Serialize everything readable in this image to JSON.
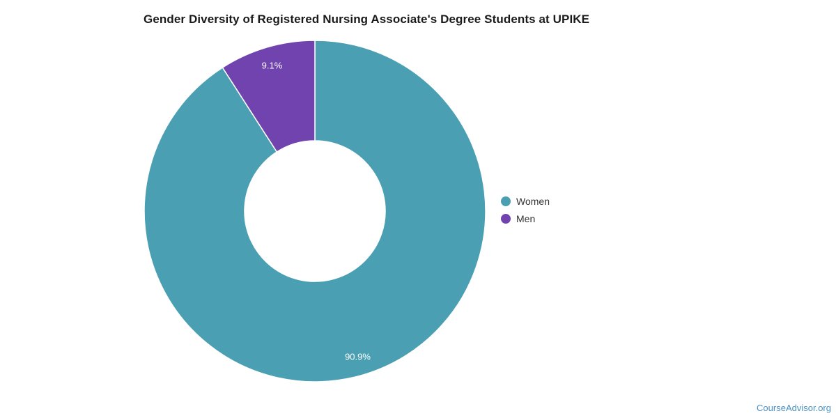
{
  "page": {
    "background": "#ffffff",
    "footer": {
      "text": "CourseAdvisor.org",
      "color": "#4a90c2"
    }
  },
  "chart_data": {
    "type": "pie",
    "donut": true,
    "title": "Gender Diversity of Registered Nursing Associate's Degree Students at UPIKE",
    "title_color": "#1a1a1a",
    "start_angle_deg": 0,
    "direction": "clockwise",
    "series": [
      {
        "name": "Women",
        "value": 90.9,
        "label": "90.9%",
        "color": "#4aa0b2"
      },
      {
        "name": "Men",
        "value": 9.1,
        "label": "9.1%",
        "color": "#7143af"
      }
    ],
    "slice_label_color": "#ffffff",
    "slice_border_color": "#ffffff",
    "legend": {
      "position": "right",
      "entries": [
        "Women",
        "Men"
      ],
      "text_color": "#333333"
    }
  }
}
